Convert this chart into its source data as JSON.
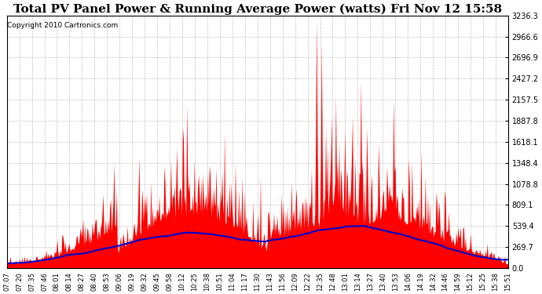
{
  "title": "Total PV Panel Power & Running Average Power (watts) Fri Nov 12 15:58",
  "copyright": "Copyright 2010 Cartronics.com",
  "yticks": [
    0.0,
    269.7,
    539.4,
    809.1,
    1078.8,
    1348.4,
    1618.1,
    1887.8,
    2157.5,
    2427.2,
    2696.9,
    2966.6,
    3236.3
  ],
  "ymax": 3236.3,
  "ymin": 0.0,
  "xtick_labels": [
    "07:07",
    "07:20",
    "07:35",
    "07:46",
    "08:01",
    "08:14",
    "08:27",
    "08:40",
    "08:53",
    "09:06",
    "09:19",
    "09:32",
    "09:45",
    "09:58",
    "10:12",
    "10:25",
    "10:38",
    "10:51",
    "11:04",
    "11:17",
    "11:30",
    "11:43",
    "11:56",
    "12:09",
    "12:22",
    "12:35",
    "12:48",
    "13:01",
    "13:14",
    "13:27",
    "13:40",
    "13:53",
    "14:06",
    "14:19",
    "14:32",
    "14:46",
    "14:59",
    "15:12",
    "15:25",
    "15:38",
    "15:51"
  ],
  "bar_color": "#FF0000",
  "line_color": "#0000CC",
  "background_color": "#FFFFFF",
  "grid_color": "#BBBBBB",
  "title_fontsize": 11,
  "copyright_fontsize": 6.5
}
